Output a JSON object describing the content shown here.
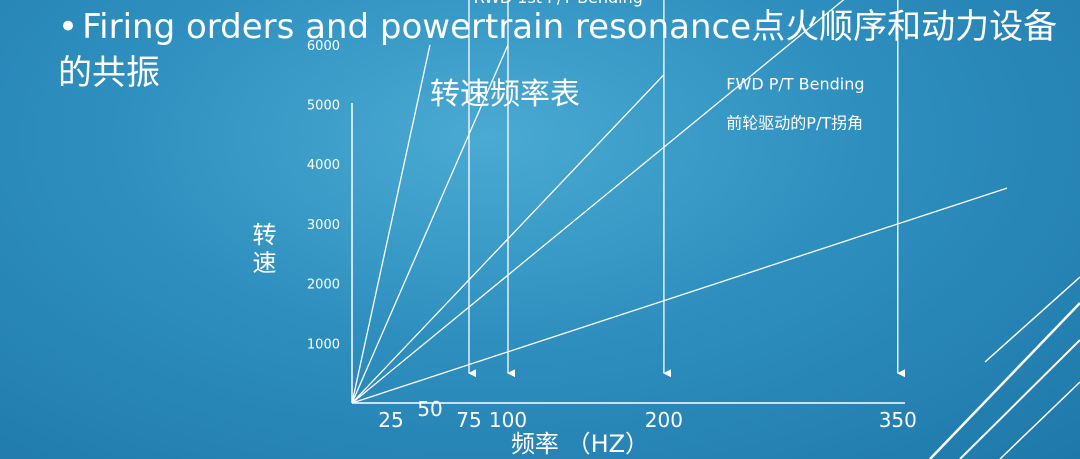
{
  "slide": {
    "bullet": "•",
    "heading": "Firing orders and powertrain resonance点火顺序和动力设备的共振"
  },
  "chart_data": {
    "type": "line",
    "title": "转速频率表",
    "xlabel": "频率 （HZ）",
    "ylabel": "转速",
    "x_ticks": [
      "25",
      "50",
      "75",
      "100",
      "200",
      "350"
    ],
    "y_ticks": [
      "1000",
      "2000",
      "3000",
      "4000",
      "5000",
      "6000"
    ],
    "xlim": [
      0,
      420
    ],
    "ylim": [
      0,
      6500
    ],
    "grid": false,
    "series": [
      {
        "x": [
          0,
          50
        ],
        "y": [
          0,
          6000
        ]
      },
      {
        "x": [
          0,
          100
        ],
        "y": [
          0,
          6000
        ]
      },
      {
        "x": [
          0,
          200
        ],
        "y": [
          0,
          5500
        ]
      },
      {
        "x": [
          0,
          420
        ],
        "y": [
          0,
          9000
        ]
      },
      {
        "x": [
          0,
          420
        ],
        "y": [
          0,
          3600
        ]
      }
    ],
    "vertical_markers": [
      {
        "x": 75,
        "y_top": 7700,
        "y_bottom": 500
      },
      {
        "x": 100,
        "y_top": 7700,
        "y_bottom": 500
      },
      {
        "x": 200,
        "y_top": 7700,
        "y_bottom": 500
      },
      {
        "x": 350,
        "y_top": 7200,
        "y_bottom": 500
      }
    ],
    "annotations": [
      {
        "text": "RWD 1st P/T Bending",
        "x": 78,
        "y": 6700
      },
      {
        "text": "FWD P/T Bending",
        "x": 240,
        "y": 5250
      },
      {
        "text": "前轮驱动的P/T拐角",
        "x": 240,
        "y": 4600
      }
    ]
  }
}
